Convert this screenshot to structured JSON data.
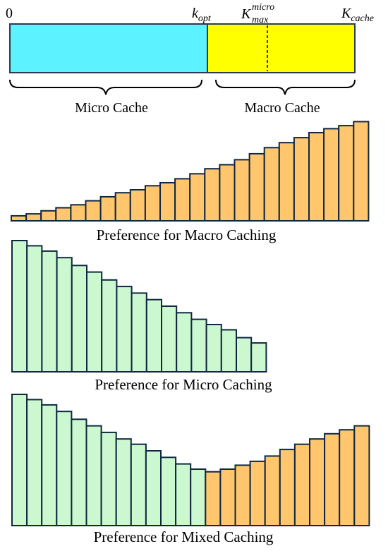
{
  "cache_bar": {
    "label_zero": "0",
    "label_k_opt": {
      "base": "k",
      "sub": "opt"
    },
    "label_k_max_micro": {
      "base": "K",
      "sup": "micro",
      "sub": "max"
    },
    "label_k_cache": {
      "base": "K",
      "sub": "cache"
    },
    "micro_color": "#5cf2ff",
    "macro_color": "#ffff00",
    "divider_color": "#2b2bd6",
    "micro_label": "Micro Cache",
    "macro_label": "Macro Cache"
  },
  "panels": [
    {
      "id": "macro",
      "caption": "Preference for Macro Caching",
      "bars": [
        {
          "value": 5,
          "color": "#ffc66e"
        },
        {
          "value": 7,
          "color": "#ffc66e"
        },
        {
          "value": 10,
          "color": "#ffc66e"
        },
        {
          "value": 13,
          "color": "#ffc66e"
        },
        {
          "value": 16,
          "color": "#ffc66e"
        },
        {
          "value": 20,
          "color": "#ffc66e"
        },
        {
          "value": 24,
          "color": "#ffc66e"
        },
        {
          "value": 28,
          "color": "#ffc66e"
        },
        {
          "value": 31,
          "color": "#ffc66e"
        },
        {
          "value": 35,
          "color": "#ffc66e"
        },
        {
          "value": 38,
          "color": "#ffc66e"
        },
        {
          "value": 42,
          "color": "#ffc66e"
        },
        {
          "value": 47,
          "color": "#ffc66e"
        },
        {
          "value": 52,
          "color": "#ffc66e"
        },
        {
          "value": 56,
          "color": "#ffc66e"
        },
        {
          "value": 61,
          "color": "#ffc66e"
        },
        {
          "value": 67,
          "color": "#ffc66e"
        },
        {
          "value": 73,
          "color": "#ffc66e"
        },
        {
          "value": 78,
          "color": "#ffc66e"
        },
        {
          "value": 83,
          "color": "#ffc66e"
        },
        {
          "value": 88,
          "color": "#ffc66e"
        },
        {
          "value": 92,
          "color": "#ffc66e"
        },
        {
          "value": 95,
          "color": "#ffc66e"
        },
        {
          "value": 99,
          "color": "#ffc66e"
        }
      ]
    },
    {
      "id": "micro",
      "caption": "Preference for Micro Caching",
      "bars": [
        {
          "value": 100,
          "color": "#ccf8d0"
        },
        {
          "value": 96,
          "color": "#ccf8d0"
        },
        {
          "value": 92,
          "color": "#ccf8d0"
        },
        {
          "value": 87,
          "color": "#ccf8d0"
        },
        {
          "value": 81,
          "color": "#ccf8d0"
        },
        {
          "value": 76,
          "color": "#ccf8d0"
        },
        {
          "value": 70,
          "color": "#ccf8d0"
        },
        {
          "value": 65,
          "color": "#ccf8d0"
        },
        {
          "value": 60,
          "color": "#ccf8d0"
        },
        {
          "value": 55,
          "color": "#ccf8d0"
        },
        {
          "value": 50,
          "color": "#ccf8d0"
        },
        {
          "value": 45,
          "color": "#ccf8d0"
        },
        {
          "value": 40,
          "color": "#ccf8d0"
        },
        {
          "value": 36,
          "color": "#ccf8d0"
        },
        {
          "value": 32,
          "color": "#ccf8d0"
        },
        {
          "value": 26,
          "color": "#ccf8d0"
        },
        {
          "value": 22,
          "color": "#ccf8d0"
        }
      ]
    },
    {
      "id": "mixed",
      "caption": "Preference for Mixed Caching",
      "bars": [
        {
          "value": 100,
          "color": "#ccf8d0"
        },
        {
          "value": 96,
          "color": "#ccf8d0"
        },
        {
          "value": 92,
          "color": "#ccf8d0"
        },
        {
          "value": 87,
          "color": "#ccf8d0"
        },
        {
          "value": 81,
          "color": "#ccf8d0"
        },
        {
          "value": 76,
          "color": "#ccf8d0"
        },
        {
          "value": 71,
          "color": "#ccf8d0"
        },
        {
          "value": 66,
          "color": "#ccf8d0"
        },
        {
          "value": 62,
          "color": "#ccf8d0"
        },
        {
          "value": 57,
          "color": "#ccf8d0"
        },
        {
          "value": 52,
          "color": "#ccf8d0"
        },
        {
          "value": 47,
          "color": "#ccf8d0"
        },
        {
          "value": 43,
          "color": "#ccf8d0"
        },
        {
          "value": 41,
          "color": "#ffc66e"
        },
        {
          "value": 43,
          "color": "#ffc66e"
        },
        {
          "value": 46,
          "color": "#ffc66e"
        },
        {
          "value": 49,
          "color": "#ffc66e"
        },
        {
          "value": 53,
          "color": "#ffc66e"
        },
        {
          "value": 58,
          "color": "#ffc66e"
        },
        {
          "value": 62,
          "color": "#ffc66e"
        },
        {
          "value": 66,
          "color": "#ffc66e"
        },
        {
          "value": 70,
          "color": "#ffc66e"
        },
        {
          "value": 73,
          "color": "#ffc66e"
        },
        {
          "value": 76,
          "color": "#ffc66e"
        }
      ]
    }
  ]
}
